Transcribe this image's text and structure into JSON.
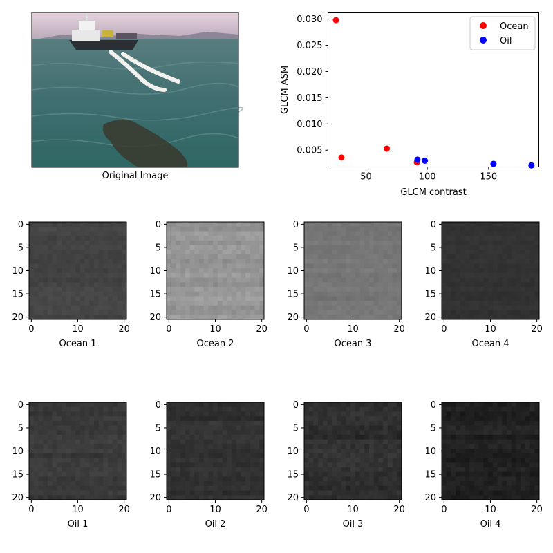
{
  "original_image": {
    "label": "Original Image"
  },
  "chart_data": [
    {
      "type": "scatter",
      "xlabel": "GLCM contrast",
      "ylabel": "GLCM ASM",
      "xlim": [
        19,
        191
      ],
      "ylim": [
        0.0018,
        0.0312
      ],
      "xticks": [
        50,
        100,
        150
      ],
      "yticks": [
        0.005,
        0.01,
        0.015,
        0.02,
        0.025,
        0.03
      ],
      "ytick_labels": [
        "0.005",
        "0.010",
        "0.015",
        "0.020",
        "0.025",
        "0.030"
      ],
      "legend_position": "top-right",
      "grid": false,
      "series": [
        {
          "name": "Ocean",
          "color": "#ff0000",
          "points": [
            [
              25.5,
              0.0298
            ],
            [
              30,
              0.0036
            ],
            [
              67,
              0.0053
            ],
            [
              91.5,
              0.0027
            ]
          ]
        },
        {
          "name": "Oil",
          "color": "#0000ff",
          "points": [
            [
              92,
              0.0032
            ],
            [
              98,
              0.003
            ],
            [
              154,
              0.0024
            ],
            [
              185,
              0.0021
            ]
          ]
        }
      ]
    },
    {
      "type": "heatmap",
      "tiles": [
        {
          "label": "Ocean 1",
          "base": 68,
          "amp": 9
        },
        {
          "label": "Ocean 2",
          "base": 150,
          "amp": 16
        },
        {
          "label": "Ocean 3",
          "base": 118,
          "amp": 10
        },
        {
          "label": "Ocean 4",
          "base": 50,
          "amp": 6
        },
        {
          "label": "Oil 1",
          "base": 58,
          "amp": 12
        },
        {
          "label": "Oil 2",
          "base": 48,
          "amp": 12
        },
        {
          "label": "Oil 3",
          "base": 46,
          "amp": 16
        },
        {
          "label": "Oil 4",
          "base": 33,
          "amp": 14
        }
      ],
      "axis_ticks": [
        "0",
        "5",
        "10",
        "15",
        "20"
      ],
      "xtick_labels": [
        "0",
        "10",
        "20"
      ]
    }
  ]
}
